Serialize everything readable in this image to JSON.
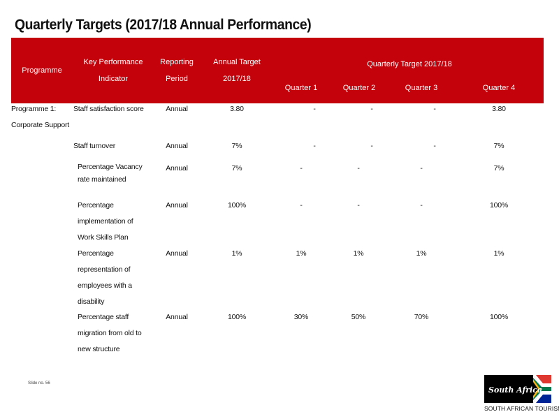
{
  "title": "Quarterly Targets (2017/18  Annual Performance)",
  "header": {
    "programme": "Programme",
    "kpi_line1": "Key Performance",
    "kpi_line2": "Indicator",
    "period_line1": "Reporting",
    "period_line2": "Period",
    "annual_line1": "Annual Target",
    "annual_line2": "2017/18",
    "quarterly": "Quarterly Target 2017/18",
    "q1": "Quarter 1",
    "q2": "Quarter 2",
    "q3": "Quarter 3",
    "q4": "Quarter 4"
  },
  "programme": {
    "line1": "Programme 1:",
    "line2": "Corporate Support"
  },
  "rows": [
    {
      "kpi": [
        "Staff satisfaction score"
      ],
      "period": "Annual",
      "annual": "3.80",
      "q1": "-",
      "q2": "-",
      "q3": "-",
      "q4": "3.80"
    },
    {
      "kpi": [
        "Staff turnover"
      ],
      "period": "Annual",
      "annual": "7%",
      "q1": "-",
      "q2": "-",
      "q3": "-",
      "q4": "7%"
    },
    {
      "kpi": [
        "Percentage Vacancy",
        "rate maintained"
      ],
      "period": "Annual",
      "annual": "7%",
      "q1": "-",
      "q2": "-",
      "q3": "-",
      "q4": "7%"
    },
    {
      "kpi": [
        "Percentage",
        "implementation of",
        "Work Skills Plan"
      ],
      "period": "Annual",
      "annual": "100%",
      "q1": "-",
      "q2": "-",
      "q3": "-",
      "q4": "100%"
    },
    {
      "kpi": [
        "Percentage",
        "representation of",
        "employees with a",
        "disability"
      ],
      "period": "Annual",
      "annual": "1%",
      "q1": "1%",
      "q2": "1%",
      "q3": "1%",
      "q4": "1%"
    },
    {
      "kpi": [
        "Percentage staff",
        "migration from old to",
        "new structure"
      ],
      "period": "Annual",
      "annual": "100%",
      "q1": "30%",
      "q2": "50%",
      "q3": "70%",
      "q4": "100%"
    }
  ],
  "footer": {
    "slide_no": "Slide no. 56",
    "logo_text": "South Africa",
    "brand": "SOUTH AFRICAN TOURISM"
  },
  "colors": {
    "header_bg": "#c4020b",
    "flag_green": "#007a4d",
    "flag_red": "#de3831",
    "flag_blue": "#002395",
    "flag_gold": "#ffb612"
  }
}
